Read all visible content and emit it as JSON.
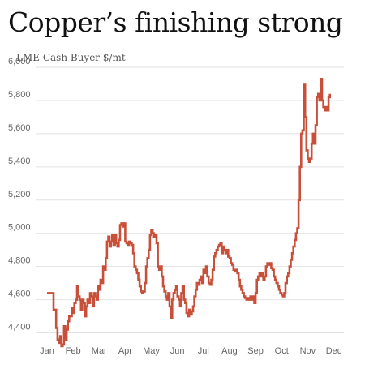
{
  "header": {
    "title": "Copper’s finishing strong",
    "subtitle": "LME Cash Buyer $/mt"
  },
  "colors": {
    "line": "#c8503a",
    "grid": "#e2e2e2",
    "text": "#666666"
  },
  "chart_data": {
    "type": "line",
    "title": "Copper’s finishing strong",
    "ylabel": "LME Cash Buyer $/mt",
    "xlabel": "",
    "ylim": [
      4300,
      6000
    ],
    "xlim": [
      0,
      12
    ],
    "grid": true,
    "yticks": [
      4400,
      4600,
      4800,
      5000,
      5200,
      5400,
      5600,
      5800,
      6000
    ],
    "ytick_labels": [
      "4,400",
      "4,600",
      "4,800",
      "5,000",
      "5,200",
      "5,400",
      "5,600",
      "5,800",
      "6,000"
    ],
    "xticks": [
      0,
      1,
      2,
      3,
      4,
      5,
      6,
      7,
      8,
      9,
      10,
      11
    ],
    "xtick_labels": [
      "Jan",
      "Feb",
      "Mar",
      "Apr",
      "May",
      "Jun",
      "Jul",
      "Aug",
      "Sep",
      "Oct",
      "Nov",
      "Dec"
    ],
    "series": [
      {
        "values": [
          [
            0.0,
            4640
          ],
          [
            0.2,
            4640
          ],
          [
            0.25,
            4540
          ],
          [
            0.35,
            4430
          ],
          [
            0.4,
            4360
          ],
          [
            0.45,
            4340
          ],
          [
            0.5,
            4380
          ],
          [
            0.55,
            4320
          ],
          [
            0.6,
            4330
          ],
          [
            0.65,
            4440
          ],
          [
            0.7,
            4360
          ],
          [
            0.75,
            4420
          ],
          [
            0.8,
            4470
          ],
          [
            0.85,
            4500
          ],
          [
            0.95,
            4550
          ],
          [
            1.0,
            4520
          ],
          [
            1.05,
            4580
          ],
          [
            1.1,
            4600
          ],
          [
            1.15,
            4680
          ],
          [
            1.2,
            4620
          ],
          [
            1.25,
            4600
          ],
          [
            1.3,
            4540
          ],
          [
            1.35,
            4600
          ],
          [
            1.4,
            4580
          ],
          [
            1.45,
            4500
          ],
          [
            1.5,
            4560
          ],
          [
            1.55,
            4600
          ],
          [
            1.6,
            4580
          ],
          [
            1.65,
            4640
          ],
          [
            1.7,
            4620
          ],
          [
            1.75,
            4560
          ],
          [
            1.8,
            4640
          ],
          [
            1.85,
            4620
          ],
          [
            1.9,
            4600
          ],
          [
            1.95,
            4680
          ],
          [
            2.0,
            4660
          ],
          [
            2.05,
            4720
          ],
          [
            2.1,
            4700
          ],
          [
            2.15,
            4800
          ],
          [
            2.2,
            4780
          ],
          [
            2.25,
            4850
          ],
          [
            2.3,
            4950
          ],
          [
            2.35,
            4980
          ],
          [
            2.4,
            4920
          ],
          [
            2.45,
            4950
          ],
          [
            2.5,
            4990
          ],
          [
            2.55,
            4930
          ],
          [
            2.6,
            4990
          ],
          [
            2.65,
            4940
          ],
          [
            2.7,
            4920
          ],
          [
            2.75,
            4960
          ],
          [
            2.8,
            5050
          ],
          [
            2.85,
            5060
          ],
          [
            2.9,
            5040
          ],
          [
            2.95,
            5060
          ],
          [
            3.0,
            4950
          ],
          [
            3.05,
            4940
          ],
          [
            3.1,
            4930
          ],
          [
            3.15,
            4950
          ],
          [
            3.2,
            4940
          ],
          [
            3.25,
            4930
          ],
          [
            3.3,
            4880
          ],
          [
            3.35,
            4800
          ],
          [
            3.4,
            4780
          ],
          [
            3.45,
            4760
          ],
          [
            3.5,
            4720
          ],
          [
            3.55,
            4680
          ],
          [
            3.6,
            4650
          ],
          [
            3.65,
            4640
          ],
          [
            3.7,
            4650
          ],
          [
            3.75,
            4700
          ],
          [
            3.8,
            4800
          ],
          [
            3.85,
            4850
          ],
          [
            3.9,
            4900
          ],
          [
            3.95,
            4990
          ],
          [
            4.0,
            5020
          ],
          [
            4.05,
            5000
          ],
          [
            4.1,
            4980
          ],
          [
            4.15,
            4990
          ],
          [
            4.2,
            4940
          ],
          [
            4.25,
            4800
          ],
          [
            4.3,
            4780
          ],
          [
            4.35,
            4800
          ],
          [
            4.4,
            4740
          ],
          [
            4.45,
            4680
          ],
          [
            4.5,
            4650
          ],
          [
            4.55,
            4620
          ],
          [
            4.6,
            4600
          ],
          [
            4.65,
            4640
          ],
          [
            4.7,
            4560
          ],
          [
            4.75,
            4490
          ],
          [
            4.8,
            4600
          ],
          [
            4.85,
            4640
          ],
          [
            4.9,
            4660
          ],
          [
            4.95,
            4680
          ],
          [
            5.0,
            4620
          ],
          [
            5.05,
            4600
          ],
          [
            5.1,
            4560
          ],
          [
            5.15,
            4640
          ],
          [
            5.2,
            4680
          ],
          [
            5.25,
            4600
          ],
          [
            5.3,
            4580
          ],
          [
            5.35,
            4520
          ],
          [
            5.4,
            4500
          ],
          [
            5.45,
            4540
          ],
          [
            5.5,
            4510
          ],
          [
            5.55,
            4530
          ],
          [
            5.6,
            4560
          ],
          [
            5.65,
            4620
          ],
          [
            5.7,
            4660
          ],
          [
            5.75,
            4700
          ],
          [
            5.8,
            4690
          ],
          [
            5.85,
            4720
          ],
          [
            5.9,
            4740
          ],
          [
            5.95,
            4700
          ],
          [
            6.0,
            4780
          ],
          [
            6.05,
            4760
          ],
          [
            6.1,
            4800
          ],
          [
            6.15,
            4740
          ],
          [
            6.2,
            4700
          ],
          [
            6.25,
            4690
          ],
          [
            6.3,
            4720
          ],
          [
            6.35,
            4780
          ],
          [
            6.4,
            4860
          ],
          [
            6.45,
            4880
          ],
          [
            6.5,
            4900
          ],
          [
            6.55,
            4920
          ],
          [
            6.6,
            4930
          ],
          [
            6.65,
            4940
          ],
          [
            6.7,
            4880
          ],
          [
            6.75,
            4920
          ],
          [
            6.8,
            4900
          ],
          [
            6.85,
            4880
          ],
          [
            6.9,
            4900
          ],
          [
            6.95,
            4860
          ],
          [
            7.0,
            4850
          ],
          [
            7.05,
            4820
          ],
          [
            7.1,
            4810
          ],
          [
            7.15,
            4780
          ],
          [
            7.2,
            4770
          ],
          [
            7.25,
            4780
          ],
          [
            7.3,
            4760
          ],
          [
            7.35,
            4720
          ],
          [
            7.4,
            4680
          ],
          [
            7.45,
            4660
          ],
          [
            7.5,
            4640
          ],
          [
            7.55,
            4620
          ],
          [
            7.6,
            4610
          ],
          [
            7.65,
            4600
          ],
          [
            7.7,
            4610
          ],
          [
            7.75,
            4600
          ],
          [
            7.8,
            4620
          ],
          [
            7.85,
            4600
          ],
          [
            7.9,
            4620
          ],
          [
            7.95,
            4580
          ],
          [
            8.0,
            4640
          ],
          [
            8.05,
            4720
          ],
          [
            8.1,
            4740
          ],
          [
            8.15,
            4760
          ],
          [
            8.2,
            4740
          ],
          [
            8.25,
            4760
          ],
          [
            8.3,
            4720
          ],
          [
            8.35,
            4740
          ],
          [
            8.4,
            4800
          ],
          [
            8.45,
            4820
          ],
          [
            8.5,
            4810
          ],
          [
            8.55,
            4820
          ],
          [
            8.6,
            4790
          ],
          [
            8.65,
            4780
          ],
          [
            8.7,
            4740
          ],
          [
            8.75,
            4720
          ],
          [
            8.8,
            4700
          ],
          [
            8.85,
            4680
          ],
          [
            8.9,
            4660
          ],
          [
            8.95,
            4640
          ],
          [
            9.0,
            4630
          ],
          [
            9.05,
            4620
          ],
          [
            9.1,
            4640
          ],
          [
            9.15,
            4700
          ],
          [
            9.2,
            4740
          ],
          [
            9.25,
            4760
          ],
          [
            9.3,
            4800
          ],
          [
            9.35,
            4840
          ],
          [
            9.4,
            4880
          ],
          [
            9.45,
            4920
          ],
          [
            9.5,
            4960
          ],
          [
            9.55,
            5000
          ],
          [
            9.6,
            5030
          ],
          [
            9.65,
            5200
          ],
          [
            9.7,
            5400
          ],
          [
            9.75,
            5600
          ],
          [
            9.8,
            5620
          ],
          [
            9.85,
            5900
          ],
          [
            9.9,
            5700
          ],
          [
            9.95,
            5500
          ],
          [
            10.0,
            5450
          ],
          [
            10.05,
            5430
          ],
          [
            10.1,
            5450
          ],
          [
            10.15,
            5540
          ],
          [
            10.2,
            5600
          ],
          [
            10.25,
            5540
          ],
          [
            10.3,
            5650
          ],
          [
            10.35,
            5820
          ],
          [
            10.4,
            5840
          ],
          [
            10.45,
            5800
          ],
          [
            10.5,
            5930
          ],
          [
            10.55,
            5800
          ],
          [
            10.6,
            5760
          ],
          [
            10.65,
            5740
          ],
          [
            10.7,
            5760
          ],
          [
            10.75,
            5740
          ],
          [
            10.8,
            5820
          ],
          [
            10.85,
            5840
          ]
        ]
      }
    ]
  }
}
